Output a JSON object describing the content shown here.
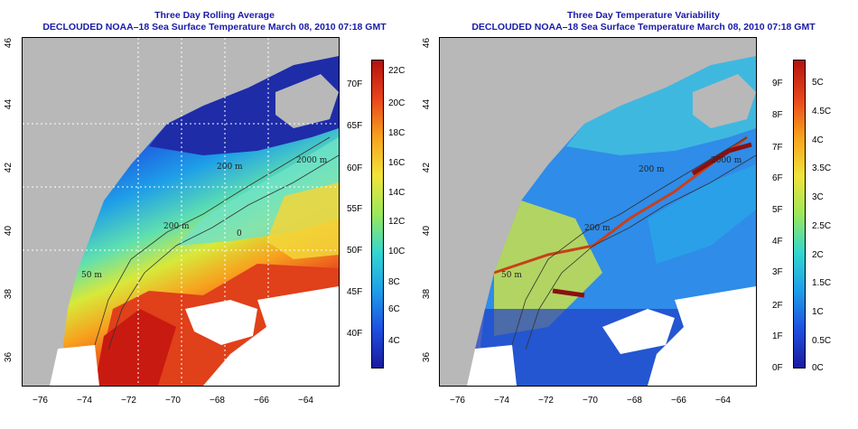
{
  "panels": [
    {
      "title": "Three Day Rolling Average",
      "subtitle": "DECLOUDED NOAA–18 Sea Surface Temperature March 08, 2010 07:18 GMT",
      "x_ticks": [
        "−76",
        "−74",
        "−72",
        "−70",
        "−68",
        "−66",
        "−64"
      ],
      "y_ticks": [
        "36",
        "38",
        "40",
        "42",
        "44",
        "46"
      ],
      "colorbar_f": [
        "40F",
        "45F",
        "50F",
        "55F",
        "60F",
        "65F",
        "70F"
      ],
      "colorbar_c": [
        "4C",
        "6C",
        "8C",
        "10C",
        "12C",
        "14C",
        "16C",
        "18C",
        "20C",
        "22C"
      ],
      "bathy_labels": [
        "200 m",
        "2000 m",
        "200 m",
        "50 m",
        "0"
      ]
    },
    {
      "title": "Three Day Temperature Variability",
      "subtitle": "DECLOUDED NOAA–18 Sea Surface Temperature March 08, 2010 07:18 GMT",
      "x_ticks": [
        "−76",
        "−74",
        "−72",
        "−70",
        "−68",
        "−66",
        "−64"
      ],
      "y_ticks": [
        "36",
        "38",
        "40",
        "42",
        "44",
        "46"
      ],
      "colorbar_f": [
        "0F",
        "1F",
        "2F",
        "3F",
        "4F",
        "5F",
        "6F",
        "7F",
        "8F",
        "9F"
      ],
      "colorbar_c": [
        "0C",
        "0.5C",
        "1C",
        "1.5C",
        "2C",
        "2.5C",
        "3C",
        "3.5C",
        "4C",
        "4.5C",
        "5C"
      ],
      "bathy_labels": [
        "200 m",
        "2000 m",
        "200 m",
        "50 m"
      ]
    }
  ],
  "colors": {
    "land": "#b8b8b8",
    "title": "#1a1aa8",
    "scale": [
      "#1a1a9e",
      "#1f4fe0",
      "#1e9ee8",
      "#33d6d0",
      "#9be85a",
      "#f2e33a",
      "#f7a21e",
      "#e8451c",
      "#b3120f"
    ]
  }
}
